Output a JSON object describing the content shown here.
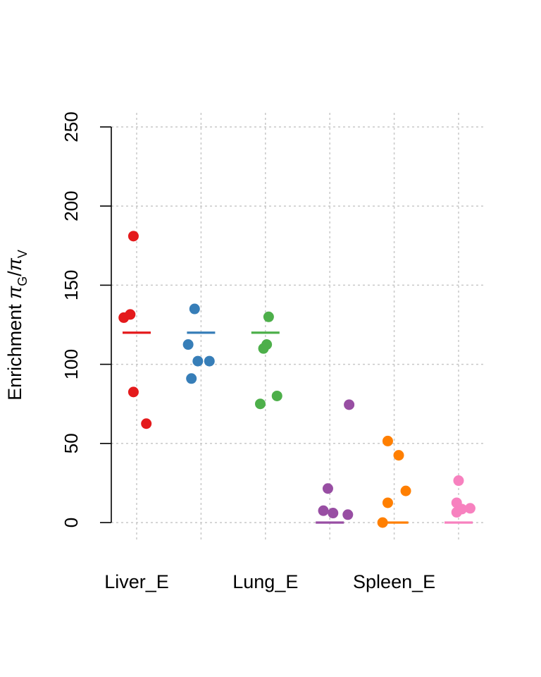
{
  "chart_data": {
    "type": "scatter",
    "title": "",
    "ylabel": {
      "prefix": "Enrichment ",
      "pi": "π",
      "sub_numerator": "G",
      "slash": "/",
      "sub_denominator": "V"
    },
    "ylim": [
      0,
      250
    ],
    "yticks": [
      "0",
      "50",
      "100",
      "150",
      "200",
      "250"
    ],
    "grid": true,
    "categories": [
      "Liver_E",
      "",
      "Lung_E",
      "",
      "Spleen_E",
      ""
    ],
    "series": [
      {
        "color": "#e41a1c",
        "median": 120,
        "points": [
          [
            -0.2,
            129.5
          ],
          [
            -0.1,
            131.5
          ],
          [
            -0.05,
            181
          ],
          [
            -0.05,
            82.5
          ],
          [
            0.15,
            62.5
          ]
        ]
      },
      {
        "color": "#377eb8",
        "median": 120,
        "points": [
          [
            -0.1,
            135
          ],
          [
            -0.2,
            112.5
          ],
          [
            -0.05,
            102
          ],
          [
            0.13,
            102
          ],
          [
            -0.15,
            91
          ]
        ]
      },
      {
        "color": "#4daf4a",
        "median": 120,
        "points": [
          [
            0.05,
            130
          ],
          [
            0.02,
            112.5
          ],
          [
            -0.03,
            110
          ],
          [
            0.18,
            80
          ],
          [
            -0.08,
            75
          ]
        ]
      },
      {
        "color": "#984ea3",
        "median": 0,
        "points": [
          [
            0.3,
            74.5
          ],
          [
            -0.03,
            21.5
          ],
          [
            -0.1,
            7.5
          ],
          [
            0.05,
            6
          ],
          [
            0.28,
            5
          ]
        ]
      },
      {
        "color": "#ff7f00",
        "median": 0,
        "points": [
          [
            -0.1,
            51.5
          ],
          [
            0.07,
            42.5
          ],
          [
            0.18,
            20
          ],
          [
            -0.1,
            12.5
          ],
          [
            -0.18,
            0
          ]
        ]
      },
      {
        "color": "#f781bf",
        "median": 0,
        "points": [
          [
            0.0,
            26.5
          ],
          [
            -0.03,
            12.5
          ],
          [
            0.05,
            8.5
          ],
          [
            0.18,
            9
          ],
          [
            -0.03,
            6.5
          ]
        ]
      }
    ]
  }
}
